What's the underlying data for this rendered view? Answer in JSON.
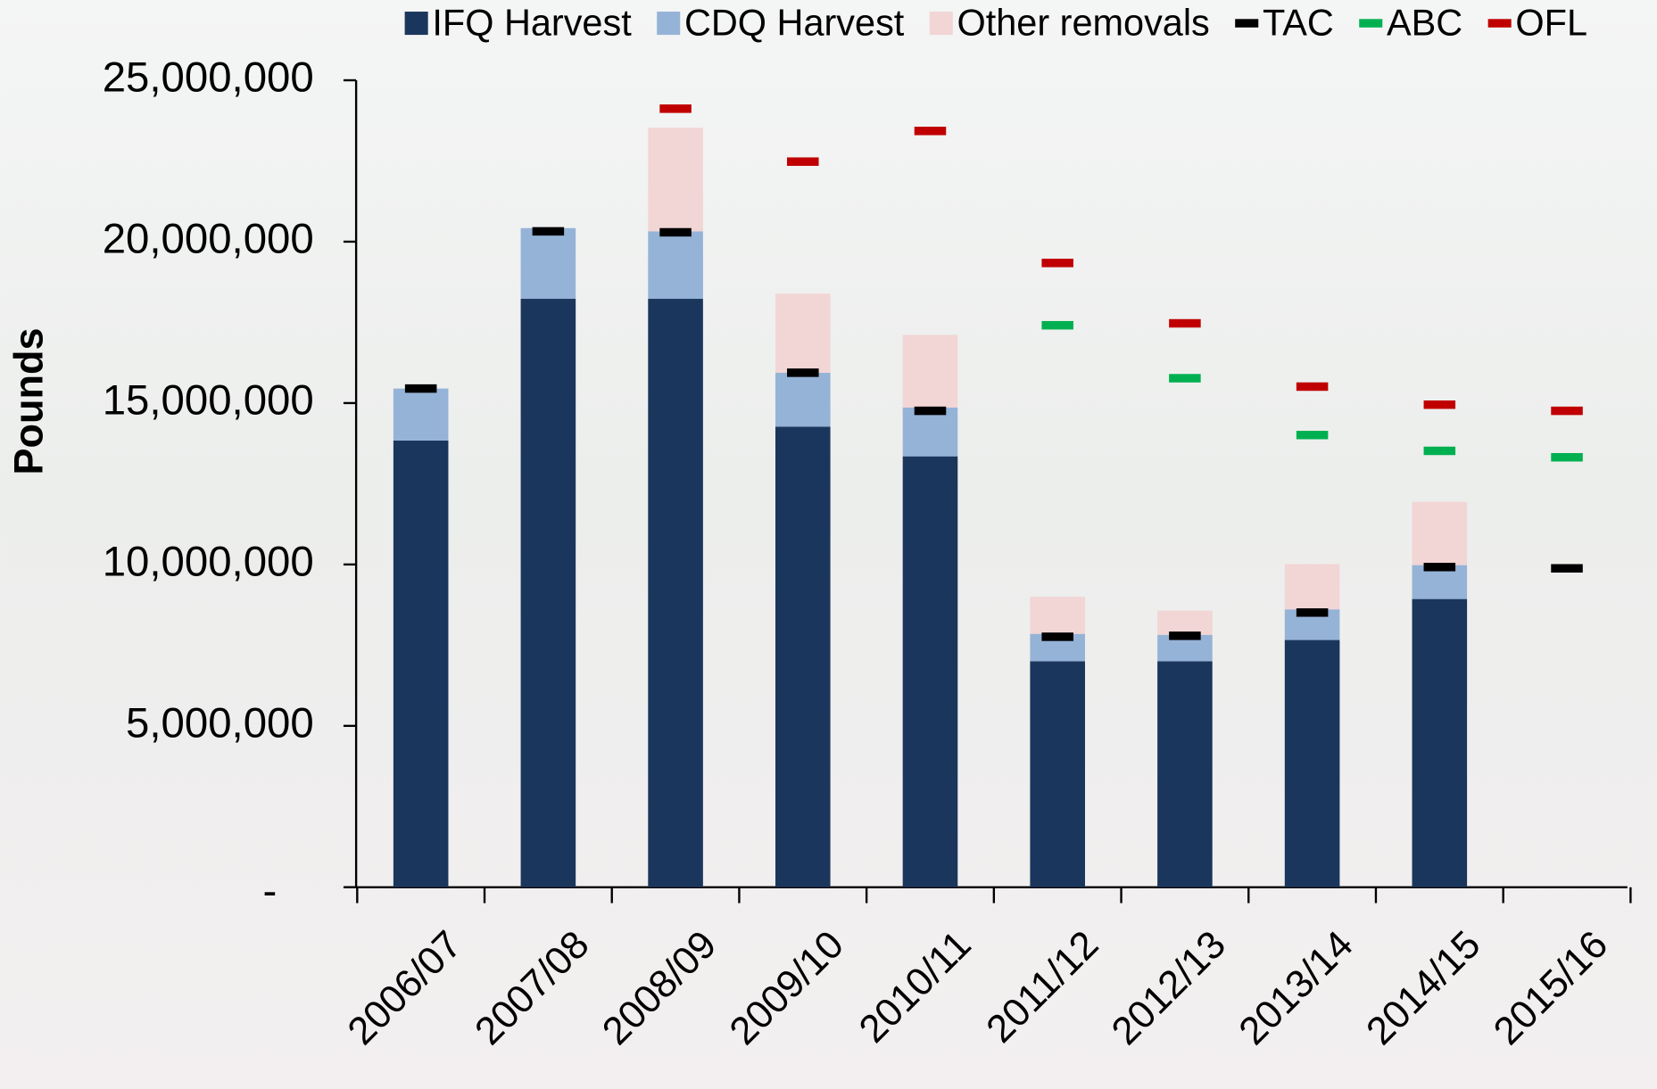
{
  "chart_data": {
    "type": "bar",
    "stacked": true,
    "y_label": "Pounds",
    "categories": [
      "2006/07",
      "2007/08",
      "2008/09",
      "2009/10",
      "2010/11",
      "2011/12",
      "2012/13",
      "2013/14",
      "2014/15",
      "2015/16"
    ],
    "series": [
      {
        "name": "IFQ Harvest",
        "kind": "bar",
        "color": "#1b365d",
        "values": [
          13840000,
          18230000,
          18230000,
          14270000,
          13350000,
          7000000,
          7000000,
          7660000,
          8930000,
          null
        ]
      },
      {
        "name": "CDQ Harvest",
        "kind": "bar",
        "color": "#95b3d7",
        "values": [
          1610000,
          2190000,
          2090000,
          1670000,
          1510000,
          850000,
          820000,
          950000,
          1050000,
          null
        ]
      },
      {
        "name": "Other removals",
        "kind": "bar",
        "color": "#f2d5d5",
        "values": [
          null,
          null,
          3210000,
          2450000,
          2250000,
          1150000,
          750000,
          1400000,
          1960000,
          null
        ]
      },
      {
        "name": "TAC",
        "kind": "marker",
        "color": "#000000",
        "values": [
          15450000,
          20320000,
          20290000,
          15940000,
          14760000,
          7760000,
          7790000,
          8510000,
          9920000,
          9880000
        ]
      },
      {
        "name": "ABC",
        "kind": "marker",
        "color": "#00b050",
        "values": [
          null,
          null,
          null,
          null,
          null,
          17410000,
          15770000,
          14010000,
          13520000,
          13320000
        ]
      },
      {
        "name": "OFL",
        "kind": "marker",
        "color": "#c00000",
        "values": [
          null,
          null,
          24120000,
          22480000,
          23430000,
          19340000,
          17470000,
          15510000,
          14950000,
          14760000
        ]
      }
    ],
    "ylim": [
      0,
      25000000
    ],
    "yticks": [
      {
        "value": 0,
        "label": "-"
      },
      {
        "value": 5000000,
        "label": "5,000,000"
      },
      {
        "value": 10000000,
        "label": "10,000,000"
      },
      {
        "value": 15000000,
        "label": "15,000,000"
      },
      {
        "value": 20000000,
        "label": "20,000,000"
      },
      {
        "value": 25000000,
        "label": "25,000,000"
      }
    ],
    "grid": false,
    "legend": "top"
  }
}
